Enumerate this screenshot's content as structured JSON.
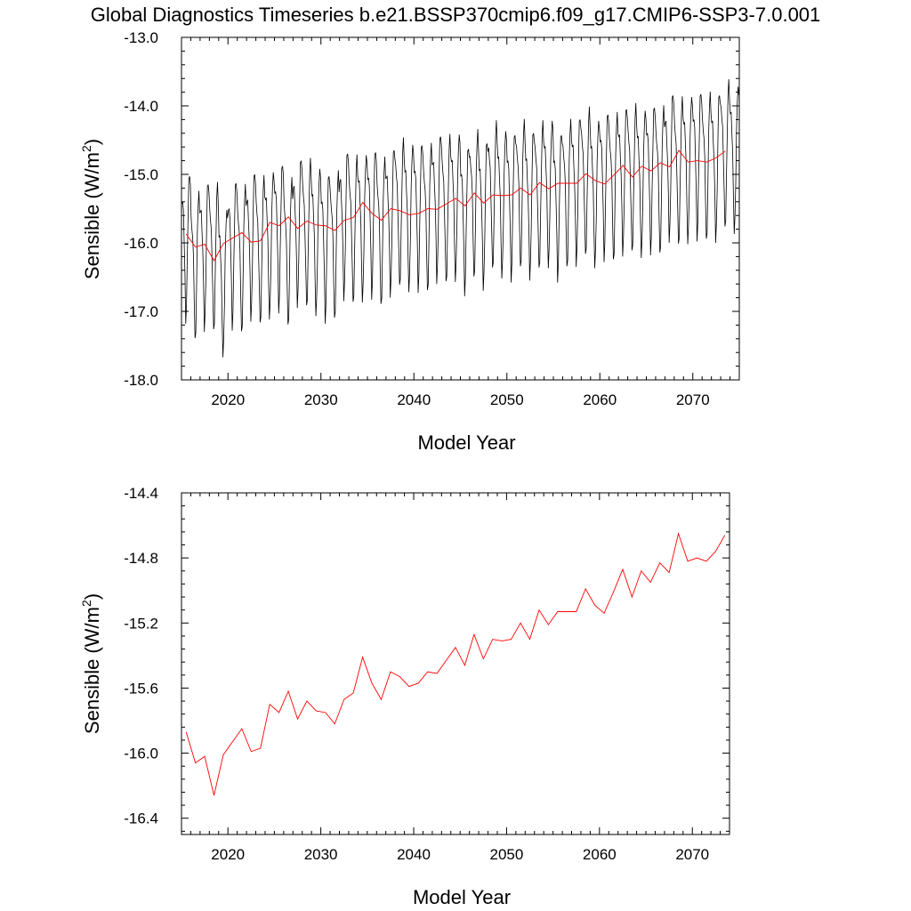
{
  "figure": {
    "title": "Global Diagnostics Timeseries b.e21.BSSP370cmip6.f09_g17.CMIP6-SSP3-7.0.001"
  },
  "colors": {
    "monthly_line": "#000000",
    "annual_line": "#ff0000",
    "axes": "#000000",
    "background": "#ffffff"
  },
  "chart_data": [
    {
      "type": "line",
      "title": "",
      "xlabel": "Model Year",
      "ylabel_main": "Sensible (W/m",
      "ylabel_sup": "2",
      "ylabel_close": ")",
      "xlim": [
        2015,
        2075
      ],
      "ylim": [
        -18.0,
        -13.0
      ],
      "xticks": [
        2020,
        2030,
        2040,
        2050,
        2060,
        2070
      ],
      "yticks": [
        -13.0,
        -14.0,
        -15.0,
        -16.0,
        -17.0,
        -18.0
      ],
      "ytick_labels": [
        "-13.0",
        "-14.0",
        "-15.0",
        "-16.0",
        "-17.0",
        "-18.0"
      ],
      "grid": false,
      "legend": "none",
      "series": [
        {
          "kind": "monthly",
          "color": "#000000",
          "x_start": 2015.04,
          "x_step": 0.08333,
          "monthly_cycle": [
            -15.45,
            -15.5,
            -15.7,
            -16.05,
            -16.6,
            -17.2,
            -17.0,
            -16.4,
            -15.7,
            -15.2,
            -15.05,
            -15.25
          ],
          "annual_anomalies": [
            0.1,
            -0.25,
            -0.1,
            -0.2,
            -0.55,
            -0.1,
            -0.25,
            -0.05,
            -0.2,
            -0.1,
            0.05,
            -0.25,
            0.05,
            -0.05,
            -0.15,
            -0.2,
            -0.25,
            0.05,
            -0.1,
            -0.05,
            0.05,
            -0.15,
            0.0,
            0.05,
            0.0,
            0.05,
            -0.05,
            0.1,
            0.0,
            0.05,
            -0.1,
            0.05,
            -0.1,
            0.1,
            0.0,
            0.0,
            0.1,
            -0.05,
            0.0,
            0.05,
            -0.1,
            0.0,
            0.05,
            0.1,
            -0.05,
            0.1,
            0.0,
            0.1,
            0.05,
            0.0,
            0.1,
            0.0,
            0.2,
            0.05,
            0.1,
            0.2,
            0.1,
            0.1,
            0.2,
            0.15
          ]
        },
        {
          "kind": "annual",
          "color": "#ff0000",
          "x": [
            2015.5,
            2016.5,
            2017.5,
            2018.5,
            2019.5,
            2020.5,
            2021.5,
            2022.5,
            2023.5,
            2024.5,
            2025.5,
            2026.5,
            2027.5,
            2028.5,
            2029.5,
            2030.5,
            2031.5,
            2032.5,
            2033.5,
            2034.5,
            2035.5,
            2036.5,
            2037.5,
            2038.5,
            2039.5,
            2040.5,
            2041.5,
            2042.5,
            2043.5,
            2044.5,
            2045.5,
            2046.5,
            2047.5,
            2048.5,
            2049.5,
            2050.5,
            2051.5,
            2052.5,
            2053.5,
            2054.5,
            2055.5,
            2056.5,
            2057.5,
            2058.5,
            2059.5,
            2060.5,
            2061.5,
            2062.5,
            2063.5,
            2064.5,
            2065.5,
            2066.5,
            2067.5,
            2068.5,
            2069.5,
            2070.5,
            2071.5,
            2072.5,
            2073.5
          ],
          "y": [
            -15.87,
            -16.06,
            -16.02,
            -16.26,
            -16.01,
            -15.93,
            -15.85,
            -15.99,
            -15.97,
            -15.7,
            -15.75,
            -15.62,
            -15.79,
            -15.68,
            -15.74,
            -15.75,
            -15.82,
            -15.67,
            -15.63,
            -15.41,
            -15.57,
            -15.67,
            -15.5,
            -15.53,
            -15.59,
            -15.57,
            -15.5,
            -15.51,
            -15.43,
            -15.35,
            -15.46,
            -15.27,
            -15.42,
            -15.3,
            -15.31,
            -15.3,
            -15.2,
            -15.3,
            -15.12,
            -15.21,
            -15.13,
            -15.13,
            -15.13,
            -14.99,
            -15.09,
            -15.14,
            -15.01,
            -14.87,
            -15.04,
            -14.88,
            -14.95,
            -14.83,
            -14.89,
            -14.65,
            -14.82,
            -14.8,
            -14.82,
            -14.76,
            -14.66
          ]
        }
      ]
    },
    {
      "type": "line",
      "title": "",
      "xlabel": "Model Year",
      "ylabel_main": "Sensible (W/m",
      "ylabel_sup": "2",
      "ylabel_close": ")",
      "xlim": [
        2015,
        2074
      ],
      "ylim": [
        -16.5,
        -14.4
      ],
      "xticks": [
        2020,
        2030,
        2040,
        2050,
        2060,
        2070
      ],
      "yticks": [
        -14.4,
        -14.8,
        -15.2,
        -15.6,
        -16.0,
        -16.4
      ],
      "ytick_labels": [
        "-14.4",
        "-14.8",
        "-15.2",
        "-15.6",
        "-16.0",
        "-16.4"
      ],
      "grid": false,
      "legend": "none",
      "series": [
        {
          "kind": "annual",
          "color": "#ff0000",
          "x": [
            2015.5,
            2016.5,
            2017.5,
            2018.5,
            2019.5,
            2020.5,
            2021.5,
            2022.5,
            2023.5,
            2024.5,
            2025.5,
            2026.5,
            2027.5,
            2028.5,
            2029.5,
            2030.5,
            2031.5,
            2032.5,
            2033.5,
            2034.5,
            2035.5,
            2036.5,
            2037.5,
            2038.5,
            2039.5,
            2040.5,
            2041.5,
            2042.5,
            2043.5,
            2044.5,
            2045.5,
            2046.5,
            2047.5,
            2048.5,
            2049.5,
            2050.5,
            2051.5,
            2052.5,
            2053.5,
            2054.5,
            2055.5,
            2056.5,
            2057.5,
            2058.5,
            2059.5,
            2060.5,
            2061.5,
            2062.5,
            2063.5,
            2064.5,
            2065.5,
            2066.5,
            2067.5,
            2068.5,
            2069.5,
            2070.5,
            2071.5,
            2072.5,
            2073.5
          ],
          "y": [
            -15.87,
            -16.06,
            -16.02,
            -16.26,
            -16.01,
            -15.93,
            -15.85,
            -15.99,
            -15.97,
            -15.7,
            -15.75,
            -15.62,
            -15.79,
            -15.68,
            -15.74,
            -15.75,
            -15.82,
            -15.67,
            -15.63,
            -15.41,
            -15.57,
            -15.67,
            -15.5,
            -15.53,
            -15.59,
            -15.57,
            -15.5,
            -15.51,
            -15.43,
            -15.35,
            -15.46,
            -15.27,
            -15.42,
            -15.3,
            -15.31,
            -15.3,
            -15.2,
            -15.3,
            -15.12,
            -15.21,
            -15.13,
            -15.13,
            -15.13,
            -14.99,
            -15.09,
            -15.14,
            -15.01,
            -14.87,
            -15.04,
            -14.88,
            -14.95,
            -14.83,
            -14.89,
            -14.65,
            -14.82,
            -14.8,
            -14.82,
            -14.76,
            -14.66
          ]
        }
      ]
    }
  ]
}
